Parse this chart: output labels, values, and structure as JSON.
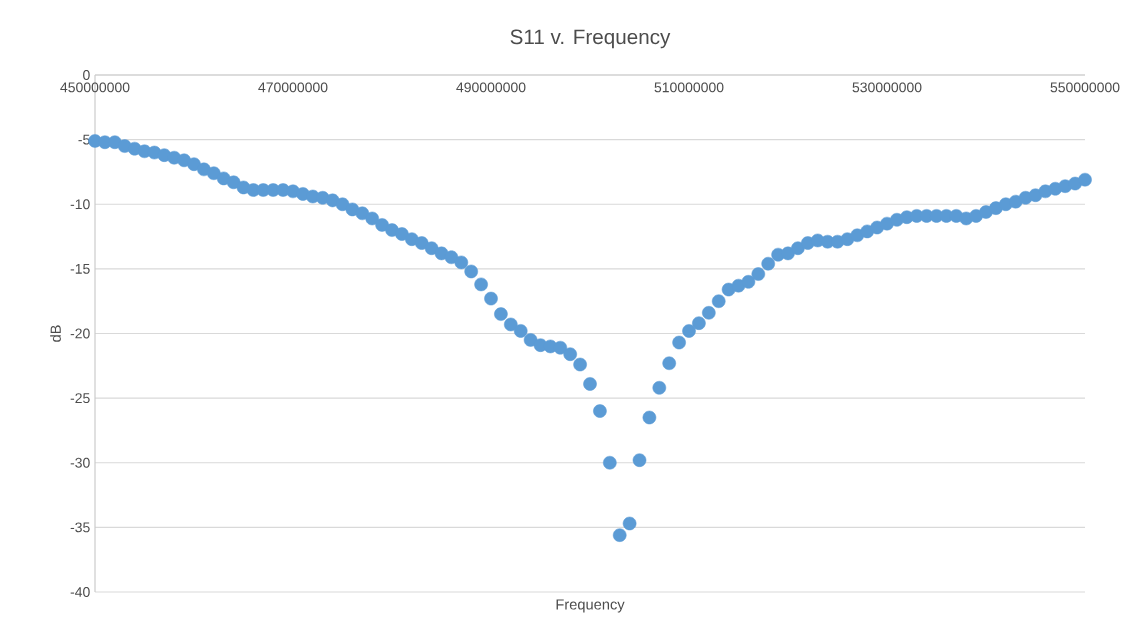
{
  "chart_data": {
    "type": "scatter",
    "title": "S11 v. Frequency",
    "xlabel": "Frequency",
    "ylabel": "dB",
    "xlim": [
      450000000,
      550000000
    ],
    "xticks": [
      450000000,
      470000000,
      490000000,
      510000000,
      530000000,
      550000000
    ],
    "ylim": [
      -40,
      0
    ],
    "yticks": [
      -40,
      -35,
      -30,
      -25,
      -20,
      -15,
      -10,
      -5,
      0
    ],
    "grid": "y",
    "marker": "circle",
    "series": [
      {
        "color": "#5b9bd5",
        "x": [
          450000000,
          451000000,
          452000000,
          453000000,
          454000000,
          455000000,
          456000000,
          457000000,
          458000000,
          459000000,
          460000000,
          461000000,
          462000000,
          463000000,
          464000000,
          465000000,
          466000000,
          467000000,
          468000000,
          469000000,
          470000000,
          471000000,
          472000000,
          473000000,
          474000000,
          475000000,
          476000000,
          477000000,
          478000000,
          479000000,
          480000000,
          481000000,
          482000000,
          483000000,
          484000000,
          485000000,
          486000000,
          487000000,
          488000000,
          489000000,
          490000000,
          491000000,
          492000000,
          493000000,
          494000000,
          495000000,
          496000000,
          497000000,
          498000000,
          499000000,
          500000000,
          501000000,
          502000000,
          503000000,
          504000000,
          505000000,
          506000000,
          507000000,
          508000000,
          509000000,
          510000000,
          511000000,
          512000000,
          513000000,
          514000000,
          515000000,
          516000000,
          517000000,
          518000000,
          519000000,
          520000000,
          521000000,
          522000000,
          523000000,
          524000000,
          525000000,
          526000000,
          527000000,
          528000000,
          529000000,
          530000000,
          531000000,
          532000000,
          533000000,
          534000000,
          535000000,
          536000000,
          537000000,
          538000000,
          539000000,
          540000000,
          541000000,
          542000000,
          543000000,
          544000000,
          545000000,
          546000000,
          547000000,
          548000000,
          549000000,
          550000000
        ],
        "values": [
          -5.1,
          -5.2,
          -5.2,
          -5.5,
          -5.7,
          -5.9,
          -6.0,
          -6.2,
          -6.4,
          -6.6,
          -6.9,
          -7.3,
          -7.6,
          -8.0,
          -8.3,
          -8.7,
          -8.9,
          -8.9,
          -8.9,
          -8.9,
          -9.0,
          -9.2,
          -9.4,
          -9.5,
          -9.7,
          -10.0,
          -10.4,
          -10.7,
          -11.1,
          -11.6,
          -12.0,
          -12.3,
          -12.7,
          -13.0,
          -13.4,
          -13.8,
          -14.1,
          -14.5,
          -15.2,
          -16.2,
          -17.3,
          -18.5,
          -19.3,
          -19.8,
          -20.5,
          -20.9,
          -21.0,
          -21.1,
          -21.6,
          -22.4,
          -23.9,
          -26.0,
          -30.0,
          -35.6,
          -34.7,
          -29.8,
          -26.5,
          -24.2,
          -22.3,
          -20.7,
          -19.8,
          -19.2,
          -18.4,
          -17.5,
          -16.6,
          -16.3,
          -16.0,
          -15.4,
          -14.6,
          -13.9,
          -13.8,
          -13.4,
          -13.0,
          -12.8,
          -12.9,
          -12.9,
          -12.7,
          -12.4,
          -12.1,
          -11.8,
          -11.5,
          -11.2,
          -11.0,
          -10.9,
          -10.9,
          -10.9,
          -10.9,
          -10.9,
          -11.1,
          -10.9,
          -10.6,
          -10.3,
          -10.0,
          -9.8,
          -9.5,
          -9.3,
          -9.0,
          -8.8,
          -8.6,
          -8.4,
          -8.1
        ]
      }
    ]
  }
}
